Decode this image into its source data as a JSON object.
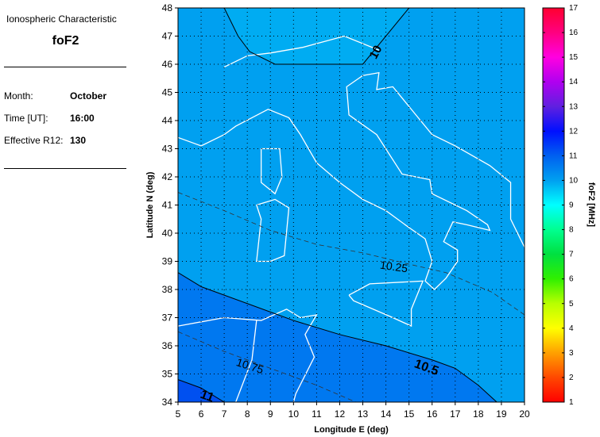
{
  "info_panel": {
    "heading": "Ionospheric Characteristic",
    "parameter": "foF2",
    "rows": [
      {
        "label": "Month:",
        "value": "October"
      },
      {
        "label": "Time [UT]:",
        "value": "16:00"
      },
      {
        "label": "Effective R12:",
        "value": "130"
      }
    ]
  },
  "chart_data": {
    "type": "contour-map",
    "xlabel": "Longitude E (deg)",
    "ylabel": "Latitude N (deg)",
    "xlim": [
      5,
      20
    ],
    "ylim": [
      34,
      48
    ],
    "xticks": [
      "5",
      "6",
      "7",
      "8",
      "9",
      "10",
      "11",
      "12",
      "13",
      "14",
      "15",
      "16",
      "17",
      "18",
      "19",
      "20"
    ],
    "yticks": [
      "34",
      "35",
      "36",
      "37",
      "38",
      "39",
      "40",
      "41",
      "42",
      "43",
      "44",
      "45",
      "46",
      "47",
      "48"
    ],
    "grid": true,
    "contours": [
      {
        "level": "10",
        "style": "solid",
        "points": [
          [
            7,
            48
          ],
          [
            7.6,
            47
          ],
          [
            8.1,
            46.45
          ],
          [
            9.2,
            46
          ],
          [
            13,
            46
          ],
          [
            15,
            48
          ]
        ]
      },
      {
        "level": "10.25",
        "style": "dashed",
        "points": [
          [
            5,
            41.45
          ],
          [
            7,
            40.8
          ],
          [
            9,
            40.1
          ],
          [
            11,
            39.6
          ],
          [
            13,
            39.3
          ],
          [
            15,
            38.9
          ],
          [
            16.6,
            38.6
          ],
          [
            18.6,
            37.9
          ],
          [
            20,
            37.1
          ]
        ]
      },
      {
        "level": "10.5",
        "style": "solid",
        "points": [
          [
            5,
            38.6
          ],
          [
            6,
            38.1
          ],
          [
            8,
            37.5
          ],
          [
            10,
            36.9
          ],
          [
            12,
            36.4
          ],
          [
            14,
            36.0
          ],
          [
            16,
            35.5
          ],
          [
            17,
            35.2
          ],
          [
            18,
            34.6
          ],
          [
            18.8,
            34
          ]
        ]
      },
      {
        "level": "10.75",
        "style": "dashed",
        "points": [
          [
            5,
            36.5
          ],
          [
            7,
            35.8
          ],
          [
            9,
            35.2
          ],
          [
            11,
            34.6
          ],
          [
            12.7,
            34
          ]
        ]
      },
      {
        "level": "11",
        "style": "solid",
        "points": [
          [
            5,
            34.8
          ],
          [
            6,
            34.5
          ],
          [
            7,
            34
          ]
        ]
      }
    ],
    "fill_colors": {
      "above_10": "#00acf2",
      "10_to_10.5": "#00a0f0",
      "10.5_to_11": "#0078f0",
      "above_11": "#0050f0"
    },
    "colorbar": {
      "label": "foF2 [MHz]",
      "range": [
        1,
        17
      ],
      "ticks": [
        "1",
        "2",
        "3",
        "4",
        "5",
        "6",
        "7",
        "8",
        "9",
        "10",
        "11",
        "12",
        "13",
        "14",
        "15",
        "16",
        "17"
      ],
      "colors": [
        "#ff0000",
        "#ff4800",
        "#ffa000",
        "#ffff00",
        "#b8ff00",
        "#30f000",
        "#00e040",
        "#00ff90",
        "#00ffff",
        "#00a0f0",
        "#0060f0",
        "#0010ff",
        "#6020e0",
        "#b000f0",
        "#ff00e0",
        "#ff0080",
        "#ff0030"
      ]
    }
  }
}
